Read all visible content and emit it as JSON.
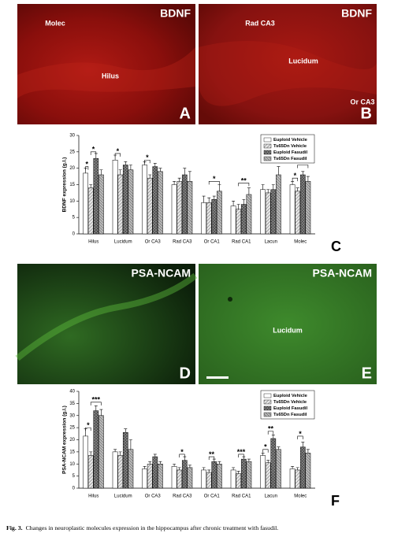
{
  "images": [
    {
      "label": "BDNF",
      "letter": "A",
      "regions": [
        "Molec",
        "Hilus"
      ]
    },
    {
      "label": "BDNF",
      "letter": "B",
      "regions": [
        "Rad CA3",
        "Lucidum",
        "Or CA3"
      ]
    },
    {
      "label": "PSA-NCAM",
      "letter": "D",
      "regions": []
    },
    {
      "label": "PSA-NCAM",
      "letter": "E",
      "regions": [
        "Lucidum"
      ]
    }
  ],
  "chart_data": [
    {
      "type": "bar",
      "letter": "C",
      "y_label": "BDNF expression (g.l.)",
      "categories": [
        "Hilus",
        "Lucidum",
        "Or CA3",
        "Rad CA3",
        "Or CA1",
        "Rad CA1",
        "Lacun",
        "Molec"
      ],
      "series": [
        {
          "name": "Euploid Vehicle",
          "color": "#ffffff",
          "values": [
            18.5,
            22.5,
            21,
            15,
            9.5,
            8.5,
            13.5,
            15
          ],
          "errors": [
            1.5,
            1.5,
            1,
            1,
            2,
            1.5,
            1.5,
            1
          ]
        },
        {
          "name": "Ts65Dn Vehicle",
          "color": "#e6e6e6",
          "values": [
            14,
            18,
            17,
            16,
            9.5,
            7.5,
            12.5,
            13
          ],
          "errors": [
            1,
            1.5,
            1,
            1,
            1.5,
            1.5,
            1,
            1
          ]
        },
        {
          "name": "Euploid Fasudil",
          "color": "#8c8c8c",
          "values": [
            23,
            21,
            20.5,
            18,
            10.5,
            9,
            13.5,
            18
          ],
          "errors": [
            1.5,
            1,
            1,
            2,
            1,
            1.5,
            1.5,
            1
          ]
        },
        {
          "name": "Ts65Dn Fasudil",
          "color": "#bdbdbd",
          "values": [
            18,
            19.5,
            19,
            16,
            13,
            12,
            18,
            16
          ],
          "errors": [
            1.5,
            1.5,
            1,
            3,
            2,
            2,
            2.5,
            1.5
          ]
        }
      ],
      "annotations": [
        "*",
        "*",
        "*",
        "*",
        "*",
        "**",
        "*",
        "**"
      ],
      "ylim": [
        0,
        30
      ],
      "yticks": [
        0,
        5,
        10,
        15,
        20,
        25,
        30
      ],
      "legend": "top-right"
    },
    {
      "type": "bar",
      "letter": "F",
      "y_label": "PSA-NCAM expression (g.l.)",
      "categories": [
        "Hilus",
        "Lucidum",
        "Or CA3",
        "Rad CA3",
        "Or CA1",
        "Rad CA1",
        "Lacun",
        "Molec"
      ],
      "series": [
        {
          "name": "Euploid Vehicle",
          "color": "#ffffff",
          "values": [
            21.5,
            15,
            8,
            9,
            7.5,
            7.5,
            13.5,
            8
          ],
          "errors": [
            3,
            1,
            1,
            1,
            1,
            1,
            1,
            1
          ]
        },
        {
          "name": "Ts65Dn Vehicle",
          "color": "#e6e6e6",
          "values": [
            13.5,
            13.5,
            10,
            7.5,
            6.5,
            6,
            10.5,
            7.5
          ],
          "errors": [
            1.5,
            1.5,
            1,
            1,
            1,
            1,
            1,
            1
          ]
        },
        {
          "name": "Euploid Fasudil",
          "color": "#8c8c8c",
          "values": [
            32,
            23,
            13,
            11.5,
            11,
            12,
            20.5,
            17
          ],
          "errors": [
            2,
            1.5,
            1,
            1.5,
            1,
            1,
            1.5,
            2
          ]
        },
        {
          "name": "Ts65Dn Fasudil",
          "color": "#bdbdbd",
          "values": [
            30,
            16,
            10,
            8.5,
            10,
            11,
            16,
            14.5
          ],
          "errors": [
            2.5,
            4,
            1,
            1,
            1,
            1,
            1,
            1.5
          ]
        }
      ],
      "annotations": [
        "*",
        "***",
        "*",
        "**",
        "***",
        "*",
        "**",
        "*"
      ],
      "ylim": [
        0,
        40
      ],
      "yticks": [
        0,
        5,
        10,
        15,
        20,
        25,
        30,
        35,
        40
      ],
      "legend": "top-right"
    }
  ],
  "caption": {
    "label": "Fig. 3.",
    "text": "Changes in neuroplastic molecules expression in the hippocampus after chronic treatment with fasudil."
  }
}
